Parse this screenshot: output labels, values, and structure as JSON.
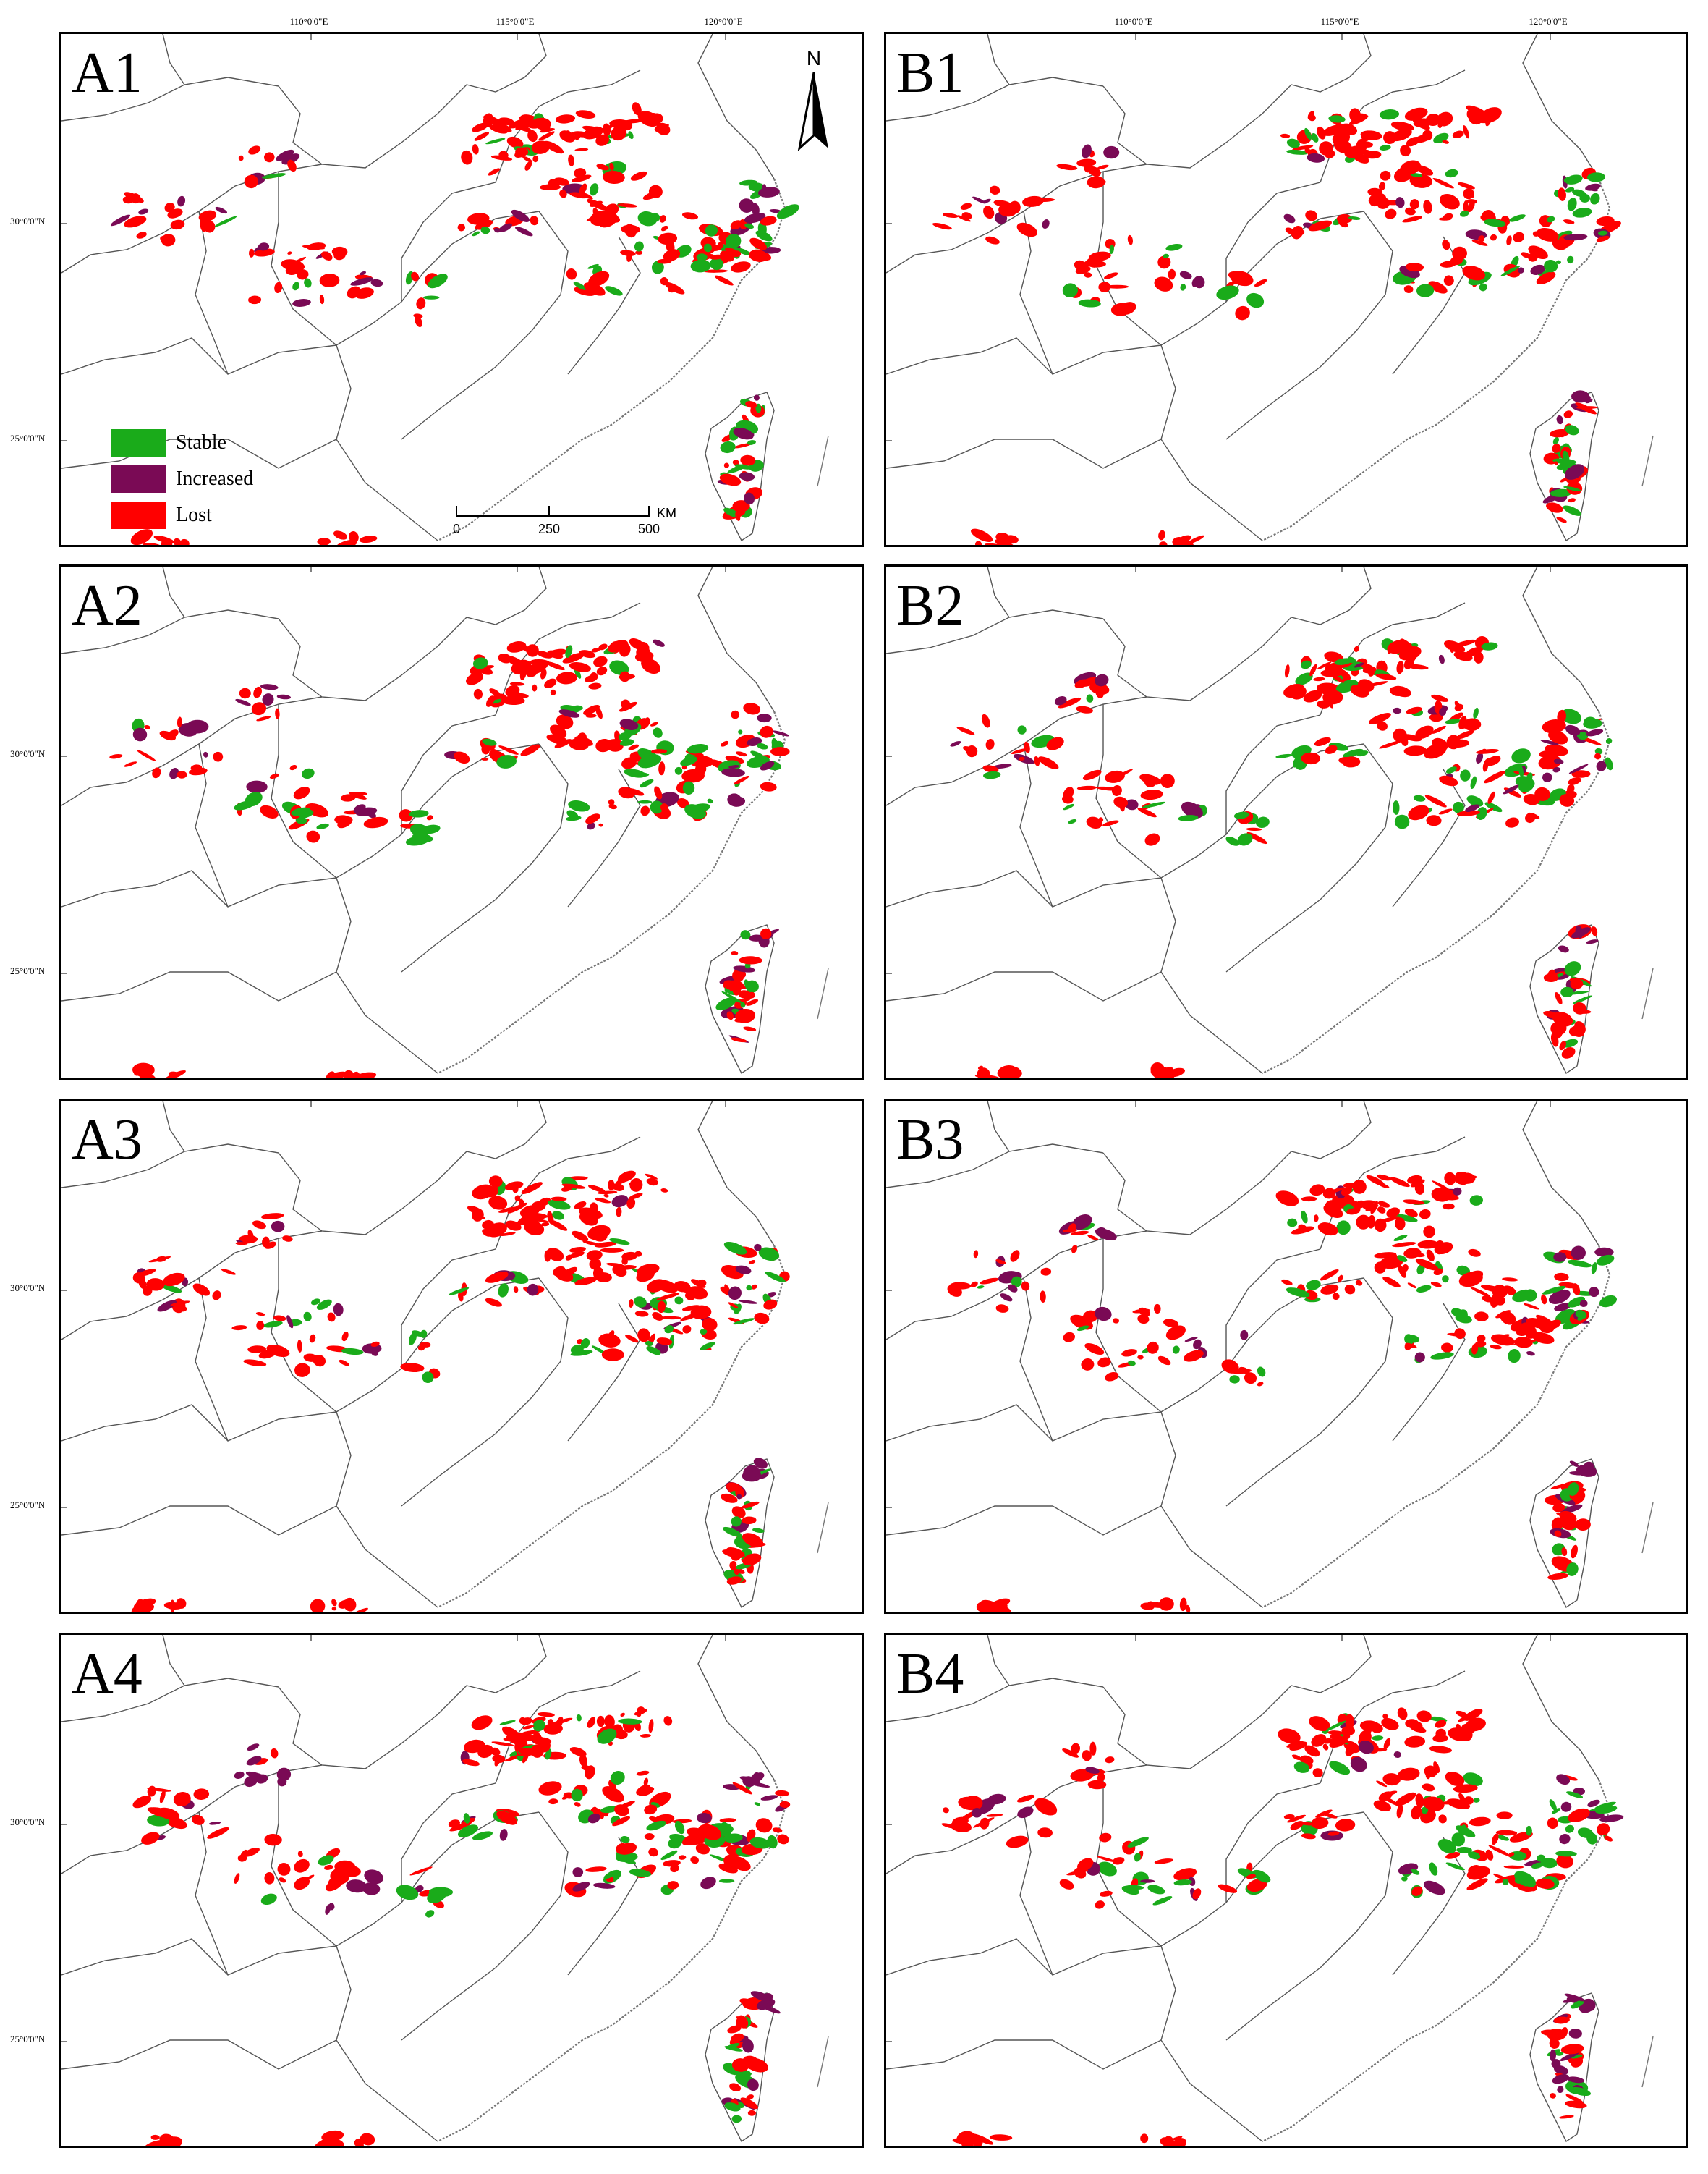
{
  "axes": {
    "longitude_labels": [
      "110°0'0\"E",
      "115°0'0\"E",
      "120°0'0\"E"
    ],
    "latitude_labels": [
      "30°0'0\"N",
      "25°0'0\"N"
    ]
  },
  "legend": {
    "items": [
      {
        "label": "Stable",
        "color": "#1aab1a"
      },
      {
        "label": "Increased",
        "color": "#7a0a55"
      },
      {
        "label": "Lost",
        "color": "#ff0000"
      }
    ]
  },
  "north_arrow": {
    "letter": "N"
  },
  "scale_bar": {
    "ticks": [
      "0",
      "250",
      "500"
    ],
    "unit": "KM"
  },
  "colors": {
    "stable": "#1aab1a",
    "increased": "#7a0a55",
    "lost": "#ff0000",
    "boundary": "#555555",
    "coast": "#777777"
  },
  "panels": [
    {
      "label": "A1"
    },
    {
      "label": "B1"
    },
    {
      "label": "A2"
    },
    {
      "label": "B2"
    },
    {
      "label": "A3"
    },
    {
      "label": "B3"
    },
    {
      "label": "A4"
    },
    {
      "label": "B4"
    }
  ]
}
